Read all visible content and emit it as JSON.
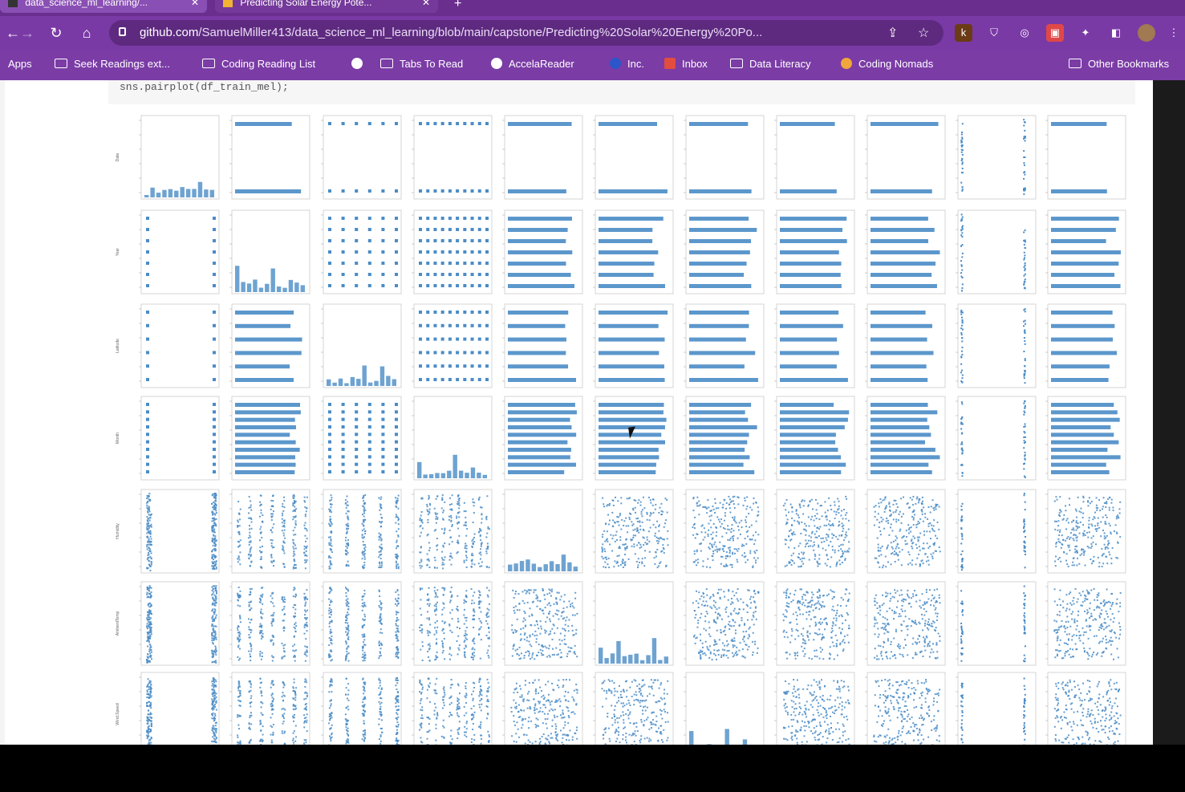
{
  "window": {
    "tabs": [
      {
        "label": "data_science_ml_learning/...",
        "state": "active"
      },
      {
        "label": "Predicting Solar Energy Pote...",
        "state": "inactive"
      }
    ],
    "new_tab_symbol": "+"
  },
  "toolbar": {
    "url_host": "github.com",
    "url_path": "/SamuelMiller413/data_science_ml_learning/blob/main/capstone/Predicting%20Solar%20Energy%20Po...",
    "icons": [
      "back-icon",
      "forward-icon",
      "reload-icon",
      "home-icon",
      "lock-icon",
      "share-icon",
      "star-icon"
    ]
  },
  "bookmarks": {
    "items": [
      {
        "label": "Apps",
        "icon": "apps-grid-icon"
      },
      {
        "label": "Seek Readings ext...",
        "icon": "folder-icon"
      },
      {
        "label": "Coding Reading List",
        "icon": "folder-icon"
      },
      {
        "label": "",
        "icon": "globe-icon"
      },
      {
        "label": "Tabs To Read",
        "icon": "folder-icon"
      },
      {
        "label": "AccelaReader",
        "icon": "globe-icon"
      },
      {
        "label": "Inc.",
        "icon": "inc-icon"
      },
      {
        "label": "Inbox",
        "icon": "gmail-icon"
      },
      {
        "label": "Data Literacy",
        "icon": "folder-icon"
      },
      {
        "label": "Coding Nomads",
        "icon": "globe-icon"
      }
    ],
    "other_label": "Other Bookmarks"
  },
  "notebook": {
    "code_line": "sns.pairplot(df_train_mel);"
  },
  "chart_data": {
    "type": "scatter",
    "title": "",
    "grid_rows": 7,
    "grid_cols": 11,
    "row_labels": [
      "Date",
      "Year",
      "Latitude",
      "Month",
      "Humidity",
      "AmbientTemp",
      "Wind.Speed"
    ],
    "marker_color": "#4a8cc6"
  }
}
